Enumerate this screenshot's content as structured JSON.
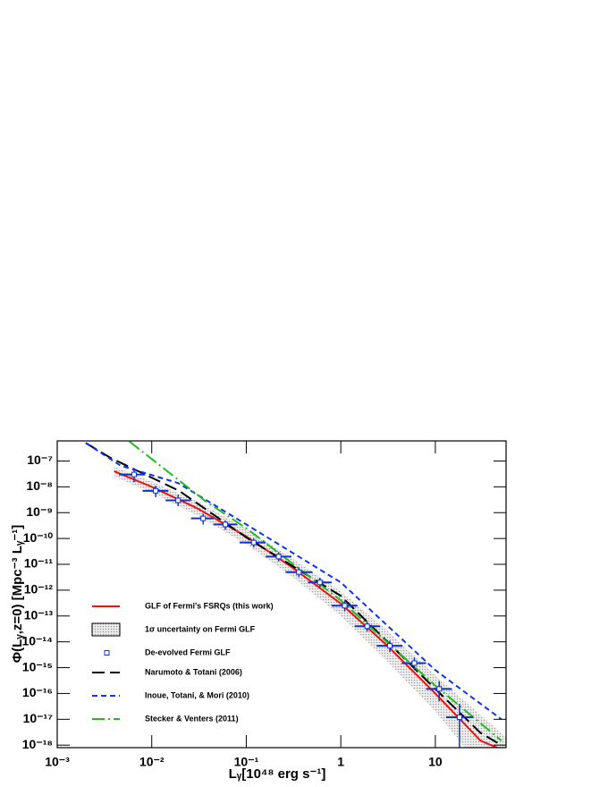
{
  "chart_data": {
    "type": "line",
    "x_label": "Lᵧ[10⁴⁸ erg s⁻¹]",
    "y_label": "Φ(Lᵧ,z=0) [Mpc⁻³ Lᵧ⁻¹]",
    "log_x": true,
    "log_y": true,
    "xlim": [
      0.001,
      56
    ],
    "ylim": [
      8e-19,
      6e-07
    ],
    "xticks": [
      {
        "value": 0.001,
        "label": "10⁻³"
      },
      {
        "value": 0.01,
        "label": "10⁻²"
      },
      {
        "value": 0.1,
        "label": "10⁻¹"
      },
      1,
      10
    ],
    "yticks": [
      {
        "value": 1e-07,
        "label": "10⁻⁷"
      },
      {
        "value": 1e-08,
        "label": "10⁻⁸"
      },
      {
        "value": 1e-09,
        "label": "10⁻⁹"
      },
      {
        "value": 1e-10,
        "label": "10⁻¹⁰"
      },
      {
        "value": 1e-11,
        "label": "10⁻¹¹"
      },
      {
        "value": 1e-12,
        "label": "10⁻¹²"
      },
      {
        "value": 1e-13,
        "label": "10⁻¹³"
      },
      {
        "value": 1e-14,
        "label": "10⁻¹⁴"
      },
      {
        "value": 1e-15,
        "label": "10⁻¹⁵"
      },
      {
        "value": 1e-16,
        "label": "10⁻¹⁶"
      },
      {
        "value": 1e-17,
        "label": "10⁻¹⁷"
      },
      {
        "value": 1e-18,
        "label": "10⁻¹⁸"
      }
    ],
    "band": {
      "name": "1σ uncertainty on  Fermi GLF",
      "color": "#bbbbbb",
      "x": [
        0.004,
        0.01,
        0.03,
        0.1,
        0.3,
        1,
        3,
        10,
        30,
        56
      ],
      "lower": [
        2.5e-08,
        6e-09,
        8e-10,
        6e-11,
        3.5e-12,
        1e-13,
        2e-15,
        2e-17,
        1.5e-19,
        1e-20
      ],
      "upper": [
        6e-08,
        1.6e-08,
        2.8e-09,
        2.4e-10,
        1.8e-11,
        9e-13,
        3e-14,
        5e-16,
        1.5e-17,
        2e-18
      ]
    },
    "series": [
      {
        "name": "GLF of Fermi's FSRQs (this work)",
        "color": "#ee1111",
        "style": "solid",
        "x": [
          0.004,
          0.01,
          0.03,
          0.1,
          0.3,
          1,
          3,
          10,
          30,
          45
        ],
        "values": [
          4e-08,
          1e-08,
          1.5e-09,
          1.2e-10,
          8e-12,
          3e-13,
          8e-15,
          1e-16,
          1.5e-18,
          8e-19
        ]
      },
      {
        "name": "Narumoto & Totani (2006)",
        "color": "#000000",
        "style": "longdash",
        "x": [
          0.002,
          0.0037,
          0.0195,
          0.1,
          1,
          10,
          30,
          50
        ],
        "values": [
          5e-07,
          1.3e-07,
          7e-09,
          1.1e-10,
          6e-13,
          1.5e-16,
          3e-18,
          1e-18
        ]
      },
      {
        "name": "Inoue, Totani, & Mori (2010)",
        "color": "#1133ee",
        "style": "dash",
        "x": [
          0.002,
          0.0047,
          0.019,
          0.1,
          1,
          10,
          50
        ],
        "values": [
          5e-07,
          6.6e-08,
          1.4e-08,
          3.5e-10,
          2e-12,
          8e-16,
          1e-17
        ]
      },
      {
        "name": "Stecker & Venters (2011)",
        "color": "#22bb22",
        "style": "dashdot",
        "x": [
          0.0058,
          0.037,
          0.1,
          1,
          10,
          50
        ],
        "values": [
          5.7e-07,
          2.8e-09,
          2.5e-10,
          4e-13,
          2e-16,
          1.5e-18
        ]
      }
    ],
    "points": {
      "name": "De-evolved Fermi GLF",
      "color": "#1133cc",
      "x": [
        0.0065,
        0.011,
        0.019,
        0.035,
        0.06,
        0.12,
        0.22,
        0.36,
        0.6,
        1.1,
        1.9,
        3.3,
        6,
        11,
        18
      ],
      "values": [
        3e-08,
        7e-09,
        3e-09,
        6e-10,
        3.5e-10,
        7e-11,
        2e-11,
        5e-12,
        2e-12,
        2.5e-13,
        4e-14,
        7e-15,
        1.5e-15,
        1.5e-16,
        1.2e-17
      ],
      "x_low": [
        0.0045,
        0.008,
        0.014,
        0.026,
        0.045,
        0.085,
        0.16,
        0.26,
        0.45,
        0.8,
        1.4,
        2.4,
        4.4,
        8,
        13
      ],
      "x_high": [
        0.0085,
        0.015,
        0.026,
        0.045,
        0.08,
        0.16,
        0.3,
        0.5,
        0.8,
        1.5,
        2.6,
        4.5,
        8,
        15,
        25
      ],
      "y_low": [
        1.5e-08,
        4e-09,
        1.8e-09,
        3.5e-10,
        2.2e-10,
        4.5e-11,
        1.3e-11,
        3.2e-12,
        1.3e-12,
        1.5e-13,
        2.5e-14,
        4e-15,
        8e-16,
        5e-17,
        8e-19
      ],
      "y_high": [
        5e-08,
        1.1e-08,
        5e-09,
        9e-10,
        5e-10,
        1e-10,
        3e-11,
        7.5e-12,
        3e-12,
        4e-13,
        6e-14,
        1.1e-14,
        2.5e-15,
        3e-16,
        4e-17
      ]
    }
  }
}
